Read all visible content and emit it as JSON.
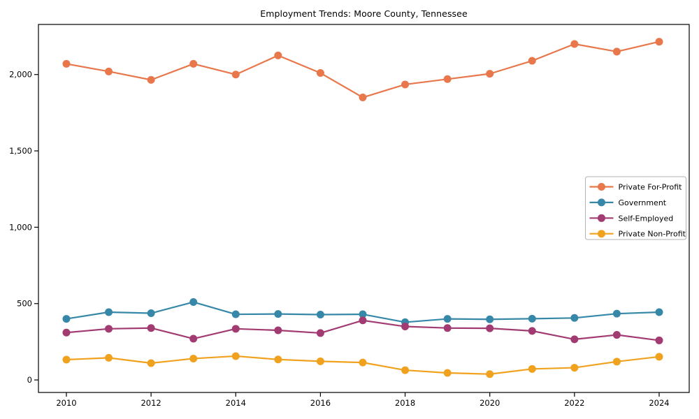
{
  "window": {
    "background": "#ffffff"
  },
  "chart_data": {
    "type": "line",
    "title": "Employment Trends: Moore County, Tennessee",
    "xlabel": "",
    "ylabel": "",
    "x": [
      2010,
      2011,
      2012,
      2013,
      2014,
      2015,
      2016,
      2017,
      2018,
      2019,
      2020,
      2021,
      2022,
      2023,
      2024
    ],
    "xticks": [
      2010,
      2012,
      2014,
      2016,
      2018,
      2020,
      2022,
      2024
    ],
    "xtick_labels": [
      "2010",
      "2012",
      "2014",
      "2016",
      "2018",
      "2020",
      "2022",
      "2024"
    ],
    "yticks": [
      0,
      500,
      1000,
      1500,
      2000
    ],
    "ytick_labels": [
      "0",
      "500",
      "1,000",
      "1,500",
      "2,000"
    ],
    "xlim": [
      2009.34,
      2024.71
    ],
    "ylim": [
      -82,
      2328
    ],
    "grid": false,
    "legend_position": "center-right",
    "series": [
      {
        "name": "Private For-Profit",
        "color": "#E8774B",
        "values": [
          2070,
          2020,
          1965,
          2070,
          2000,
          2125,
          2010,
          1850,
          1935,
          1970,
          2005,
          2090,
          2200,
          2150,
          2215
        ]
      },
      {
        "name": "Government",
        "color": "#3788A8",
        "values": [
          400,
          444,
          437,
          510,
          430,
          432,
          428,
          430,
          378,
          400,
          397,
          401,
          406,
          434,
          444
        ]
      },
      {
        "name": "Self-Employed",
        "color": "#A23B72",
        "values": [
          310,
          335,
          340,
          270,
          335,
          325,
          307,
          390,
          350,
          340,
          338,
          321,
          266,
          295,
          259
        ]
      },
      {
        "name": "Private Non-Profit",
        "color": "#F0A21E",
        "values": [
          133,
          145,
          110,
          140,
          156,
          134,
          122,
          114,
          64,
          46,
          38,
          72,
          80,
          120,
          152
        ]
      }
    ]
  },
  "axes": {
    "spine_color": "#000000",
    "tick_label_color": "#000000",
    "legend_border_color": "#b3b3b3"
  }
}
